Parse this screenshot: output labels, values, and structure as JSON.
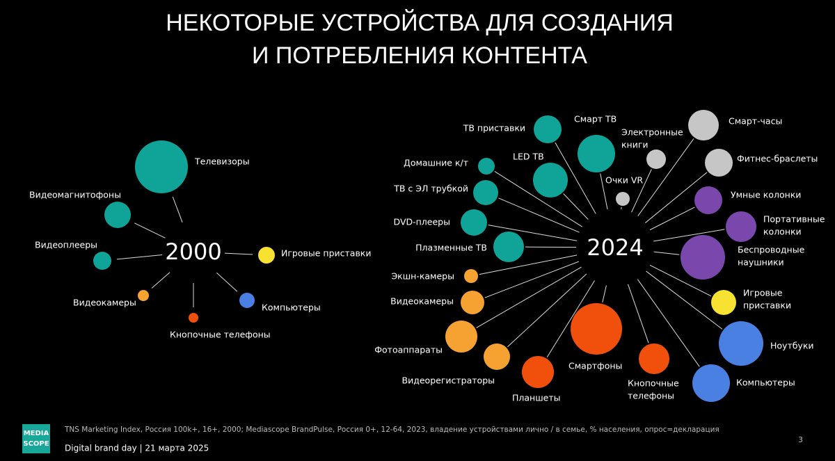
{
  "title": [
    "НЕКОТОРЫЕ УСТРОЙСТВА ДЛЯ СОЗДАНИЯ",
    "И ПОТРЕБЛЕНИЯ КОНТЕНТА"
  ],
  "diagrams": [
    {
      "center": "2000",
      "nodes": [
        {
          "label": [
            "Телевизоры"
          ]
        },
        {
          "label": [
            "Видеомагнитофоны"
          ]
        },
        {
          "label": [
            "Видеоплееры"
          ]
        },
        {
          "label": [
            "Видеокамеры"
          ]
        },
        {
          "label": [
            "Кнопочные телефоны"
          ]
        },
        {
          "label": [
            "Компьютеры"
          ]
        },
        {
          "label": [
            "Игровые приставки"
          ]
        }
      ]
    },
    {
      "center": "2024",
      "nodes": [
        {
          "label": [
            "ТВ приставки"
          ]
        },
        {
          "label": [
            "Смарт ТВ"
          ]
        },
        {
          "label": [
            "LED ТВ"
          ]
        },
        {
          "label": [
            "Домашние к/т"
          ]
        },
        {
          "label": [
            "ТВ с ЭЛ трубкой"
          ]
        },
        {
          "label": [
            "DVD-плееры"
          ]
        },
        {
          "label": [
            "Плазменные ТВ"
          ]
        },
        {
          "label": [
            "Экшн-камеры"
          ]
        },
        {
          "label": [
            "Видеокамеры"
          ]
        },
        {
          "label": [
            "Фотоаппараты"
          ]
        },
        {
          "label": [
            "Видеорегистраторы"
          ]
        },
        {
          "label": [
            "Планшеты"
          ]
        },
        {
          "label": [
            "Смартфоны"
          ]
        },
        {
          "label": [
            "Кнопочные",
            "телефоны"
          ]
        },
        {
          "label": [
            "Компьютеры"
          ]
        },
        {
          "label": [
            "Ноутбуки"
          ]
        },
        {
          "label": [
            "Игровые",
            "приставки"
          ]
        },
        {
          "label": [
            "Беспроводные",
            "наушники"
          ]
        },
        {
          "label": [
            "Портативные",
            "колонки"
          ]
        },
        {
          "label": [
            "Умные колонки"
          ]
        },
        {
          "label": [
            "Фитнес-браслеты"
          ]
        },
        {
          "label": [
            "Смарт-часы"
          ]
        },
        {
          "label": [
            "Очки VR"
          ]
        },
        {
          "label": [
            "Электронные",
            "книги"
          ]
        }
      ]
    }
  ],
  "footer": {
    "source": "TNS Marketing Index, Россия 100k+, 16+, 2000; Mediascope BrandPulse, Россия 0+, 12-64, 2023, владение устройствами лично / в семье, % населения, опрос=декларация",
    "event": "Digital brand day |  21 марта 2025",
    "page": "3",
    "logo": [
      "MEDIA",
      "SCOPE"
    ]
  }
}
